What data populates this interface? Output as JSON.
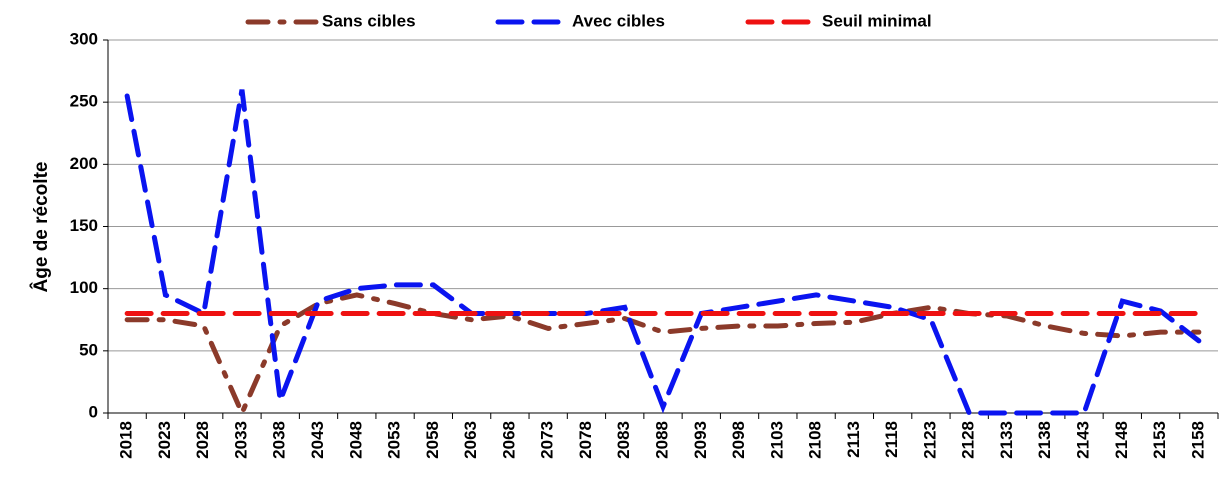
{
  "chart_data": {
    "type": "line",
    "y_label": "Âge de récolte",
    "categories": [
      "2018",
      "2023",
      "2028",
      "2033",
      "2038",
      "2043",
      "2048",
      "2053",
      "2058",
      "2063",
      "2068",
      "2073",
      "2078",
      "2083",
      "2088",
      "2093",
      "2098",
      "2103",
      "2108",
      "2113",
      "2118",
      "2123",
      "2128",
      "2133",
      "2138",
      "2143",
      "2148",
      "2153",
      "2158"
    ],
    "series": [
      {
        "name": "Sans cibles",
        "color": "#8b3a2a",
        "dash": "dashdot",
        "values": [
          75,
          75,
          70,
          0,
          70,
          88,
          95,
          88,
          80,
          75,
          78,
          68,
          72,
          76,
          65,
          68,
          70,
          70,
          72,
          73,
          80,
          85,
          80,
          78,
          70,
          64,
          62,
          65,
          65
        ]
      },
      {
        "name": "Avec cibles",
        "color": "#0a14f0",
        "dash": "dash",
        "values": [
          255,
          95,
          80,
          260,
          10,
          90,
          100,
          103,
          103,
          80,
          80,
          80,
          80,
          85,
          5,
          80,
          85,
          90,
          95,
          90,
          85,
          75,
          0,
          0,
          0,
          0,
          90,
          82,
          58
        ]
      },
      {
        "name": "Seuil minimal",
        "color": "#ee1111",
        "dash": "dash",
        "values": [
          80,
          80,
          80,
          80,
          80,
          80,
          80,
          80,
          80,
          80,
          80,
          80,
          80,
          80,
          80,
          80,
          80,
          80,
          80,
          80,
          80,
          80,
          80,
          80,
          80,
          80,
          80,
          80,
          80
        ]
      }
    ],
    "ylim": [
      0,
      300
    ],
    "yticks": [
      0,
      50,
      100,
      150,
      200,
      250,
      300
    ],
    "grid": true,
    "legend": "top"
  }
}
